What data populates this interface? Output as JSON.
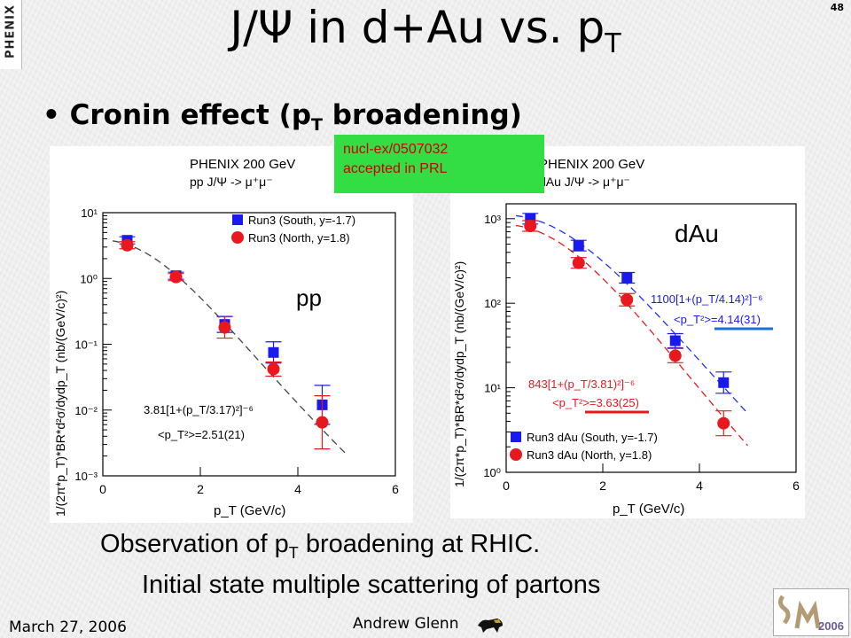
{
  "slide": {
    "number": "48",
    "logo_text": "PHENIX",
    "title": "J/Ψ in d+Au vs. p",
    "title_sub": "T",
    "bullet_pre": "Cronin effect (p",
    "bullet_sub": "T",
    "bullet_post": " broadening)",
    "tag_line1": "nucl-ex/0507032",
    "tag_line2": "accepted in PRL",
    "obs_pre": "Observation of p",
    "obs_sub": "T",
    "obs_post": " broadening at RHIC.",
    "obs_line2": "Initial state multiple scattering of partons",
    "date": "March 27, 2006",
    "author": "Andrew Glenn"
  },
  "colors": {
    "blue": "#1a1aee",
    "red": "#e8181e",
    "tag_bg": "#33dd44"
  },
  "chart_data": [
    {
      "type": "scatter",
      "header_line1": "PHENIX 200 GeV",
      "header_line2": "pp J/Ψ -> μ⁺μ⁻",
      "corner_label": "pp",
      "xlabel": "p_T (GeV/c)",
      "ylabel": "1/(2π*p_T)*BR*d²σ/dydp_T (nb/(GeV/c)²)",
      "xlim": [
        0,
        6
      ],
      "ylim": [
        0.001,
        10
      ],
      "y_scale": "log",
      "x_ticks": [
        "0",
        "2",
        "4",
        "6"
      ],
      "y_ticks": [
        "10⁻³",
        "10⁻²",
        "10⁻¹",
        "10⁰",
        "10¹"
      ],
      "fit_label_1": "3.81[1+(p_T/3.17)²]⁻⁶",
      "fit_label_2": "<p_T²>=2.51(21)",
      "series": [
        {
          "name": "Run3 (South, y=-1.7)",
          "color": "blue",
          "marker": "square",
          "x": [
            0.5,
            1.5,
            2.5,
            3.5,
            4.5
          ],
          "y": [
            3.8,
            1.1,
            0.2,
            0.075,
            0.012
          ]
        },
        {
          "name": "Run3 (North, y=1.8)",
          "color": "red",
          "marker": "circle",
          "x": [
            0.5,
            1.5,
            2.5,
            3.5,
            4.5
          ],
          "y": [
            3.2,
            1.05,
            0.18,
            0.042,
            0.0065
          ]
        }
      ]
    },
    {
      "type": "scatter",
      "header_line1": "PHENIX 200 GeV",
      "header_line2": "dAu J/Ψ -> μ⁺μ⁻",
      "corner_label": "dAu",
      "xlabel": "p_T (GeV/c)",
      "ylabel": "1/(2π*p_T)*BR*d²σ/dydp_T (nb/(GeV/c)²)",
      "xlim": [
        0,
        6
      ],
      "ylim": [
        1,
        1500
      ],
      "y_scale": "log",
      "x_ticks": [
        "0",
        "2",
        "4",
        "6"
      ],
      "y_ticks": [
        "10⁰",
        "10¹",
        "10²",
        "10³"
      ],
      "fit_blue_1": "1100[1+(p_T/4.14)²]⁻⁶",
      "fit_blue_2": "<p_T²>=4.14(31)",
      "fit_red_1": "843[1+(p_T/3.81)²]⁻⁶",
      "fit_red_2": "<p_T²>=3.63(25)",
      "series": [
        {
          "name": "Run3 dAu (South, y=-1.7)",
          "color": "blue",
          "marker": "square",
          "x": [
            0.5,
            1.5,
            2.5,
            3.5,
            4.5
          ],
          "y": [
            1000,
            480,
            200,
            36,
            11.5
          ]
        },
        {
          "name": "Run3 dAu (North, y=1.8)",
          "color": "red",
          "marker": "circle",
          "x": [
            0.5,
            1.5,
            2.5,
            3.5,
            4.5
          ],
          "y": [
            820,
            300,
            110,
            24,
            3.8
          ]
        }
      ]
    }
  ]
}
